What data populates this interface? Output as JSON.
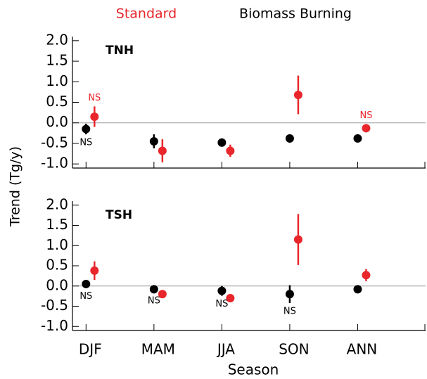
{
  "figure": {
    "ylabel": "Trend (Tg/y)",
    "xlabel": "Season"
  },
  "chart_data": [
    {
      "type": "errorbar",
      "title": "TNH",
      "categories": [
        null,
        null,
        null,
        null,
        null
      ],
      "ylim": [
        -1.1,
        2.1
      ],
      "yticks": [
        {
          "value": 2.0,
          "label": "2.0"
        },
        1.5,
        {
          "value": 1.0,
          "label": "1.0"
        },
        0.5,
        {
          "value": 0.0,
          "label": "0.0"
        },
        -0.5,
        {
          "value": -1.0,
          "label": "-1.0"
        }
      ],
      "zero_line": true,
      "series": [
        {
          "name": "Standard",
          "color": "#e8262b",
          "values": [
            0.15,
            -0.68,
            -0.68,
            0.68,
            -0.13
          ],
          "errors": [
            0.25,
            0.28,
            0.15,
            0.47,
            0.1
          ],
          "labels": [
            "NS",
            null,
            null,
            null,
            "NS"
          ]
        },
        {
          "name": "Biomass Burning",
          "color": "#000000",
          "values": [
            -0.15,
            -0.45,
            -0.48,
            -0.38,
            -0.38
          ],
          "errors": [
            0.13,
            0.17,
            0.1,
            0.1,
            0.04
          ],
          "labels": [
            "NS",
            null,
            null,
            null,
            null
          ]
        }
      ]
    },
    {
      "type": "errorbar",
      "title": "TSH",
      "categories": [
        "DJF",
        "MAM",
        "JJA",
        "SON",
        "ANN"
      ],
      "ylim": [
        -1.1,
        2.1
      ],
      "yticks": [
        {
          "value": 2.0,
          "label": "2.0"
        },
        1.5,
        {
          "value": 1.0,
          "label": "1.0"
        },
        0.5,
        {
          "value": 0.0,
          "label": "0.0"
        },
        -0.5,
        {
          "value": -1.0,
          "label": "-1.0"
        }
      ],
      "zero_line": true,
      "series": [
        {
          "name": "Standard",
          "color": "#e8262b",
          "values": [
            0.38,
            -0.2,
            -0.3,
            1.15,
            0.27
          ],
          "errors": [
            0.23,
            0.04,
            0.05,
            0.63,
            0.15
          ],
          "labels": [
            null,
            null,
            null,
            null,
            null
          ]
        },
        {
          "name": "Biomass Burning",
          "color": "#000000",
          "values": [
            0.05,
            -0.08,
            -0.12,
            -0.2,
            -0.08
          ],
          "errors": [
            0.1,
            0.08,
            0.12,
            0.22,
            0.03
          ],
          "labels": [
            "NS",
            "NS",
            "NS",
            "NS",
            null
          ]
        }
      ]
    }
  ]
}
